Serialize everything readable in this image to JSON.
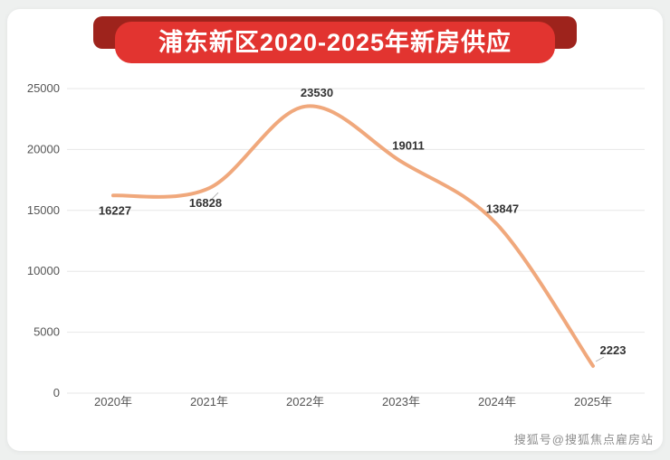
{
  "page": {
    "title": "浦东新区2020-2025年新房供应",
    "watermark": "搜狐号@搜狐焦点雇房站"
  },
  "chart_data": {
    "type": "line",
    "title": "浦东新区2020-2025年新房供应",
    "categories": [
      "2020年",
      "2021年",
      "2022年",
      "2023年",
      "2024年",
      "2025年"
    ],
    "series": [
      {
        "name": "新房供应",
        "values": [
          16227,
          16828,
          23530,
          19011,
          13847,
          2223
        ]
      }
    ],
    "xlabel": "",
    "ylabel": "",
    "ylim": [
      0,
      25000
    ],
    "yticks": [
      0,
      5000,
      10000,
      15000,
      20000,
      25000
    ],
    "grid": true,
    "legend": false,
    "line_color": "#f0a87c",
    "label_color": "#333333",
    "grid_color": "#e7e7e7"
  }
}
